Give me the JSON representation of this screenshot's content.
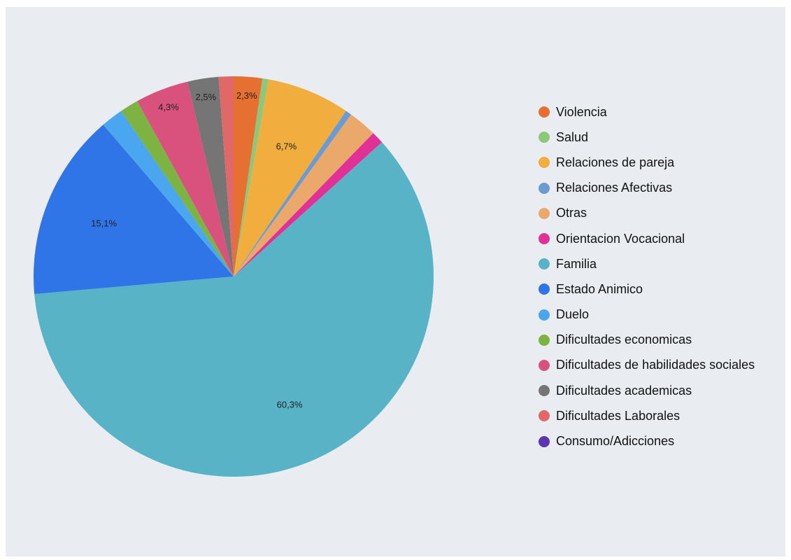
{
  "chart_data": {
    "type": "pie",
    "title": "",
    "start_angle_deg": 0,
    "direction": "clockwise",
    "legend_position": "right",
    "slices": [
      {
        "label": "Violencia",
        "value": 2.3,
        "color": "#e57031",
        "display": "2,3%"
      },
      {
        "label": "Salud",
        "value": 0.5,
        "color": "#8dc87a",
        "display": ""
      },
      {
        "label": "Relaciones de pareja",
        "value": 6.7,
        "color": "#f1ad3e",
        "display": "6,7%"
      },
      {
        "label": "Relaciones Afectivas",
        "value": 0.5,
        "color": "#6c9bd2",
        "display": ""
      },
      {
        "label": "Otras",
        "value": 2.3,
        "color": "#eaa86a",
        "display": ""
      },
      {
        "label": "Orientacion Vocacional",
        "value": 1.0,
        "color": "#e13197",
        "display": ""
      },
      {
        "label": "Familia",
        "value": 60.3,
        "color": "#58b3c6",
        "display": "60,3%"
      },
      {
        "label": "Estado Animico",
        "value": 15.1,
        "color": "#3075e8",
        "display": "15,1%"
      },
      {
        "label": "Duelo",
        "value": 1.8,
        "color": "#4aa6ef",
        "display": ""
      },
      {
        "label": "Dificultades economicas",
        "value": 1.5,
        "color": "#7cb342",
        "display": ""
      },
      {
        "label": "Dificultades de habilidades sociales",
        "value": 4.3,
        "color": "#d9517d",
        "display": "4,3%"
      },
      {
        "label": "Dificultades academicas",
        "value": 2.5,
        "color": "#757575",
        "display": "2,5%"
      },
      {
        "label": "Dificultades Laborales",
        "value": 1.2,
        "color": "#e06868",
        "display": ""
      },
      {
        "label": "Consumo/Adicciones",
        "value": 0.0,
        "color": "#5e35b1",
        "display": ""
      }
    ]
  }
}
